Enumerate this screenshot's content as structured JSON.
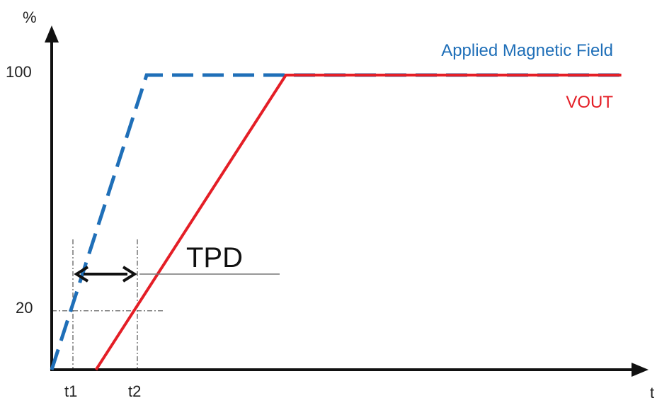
{
  "chart_data": {
    "type": "line",
    "y_axis_label": "%",
    "x_axis_label": "t",
    "y_ticks": [
      {
        "value": 100,
        "label": "100"
      },
      {
        "value": 20,
        "label": "20"
      }
    ],
    "x_ticks": [
      {
        "id": "t1",
        "label": "t1"
      },
      {
        "id": "t2",
        "label": "t2"
      }
    ],
    "series": [
      {
        "name": "Applied Magnetic Field",
        "color": "#1f6fb8",
        "style": "dashed",
        "description_points": [
          [
            0,
            0
          ],
          [
            1.5,
            100
          ],
          [
            9.0,
            100
          ]
        ]
      },
      {
        "name": "VOUT",
        "color": "#e41e26",
        "style": "solid",
        "description_points": [
          [
            0.7,
            0
          ],
          [
            3.7,
            100
          ],
          [
            9.0,
            100
          ]
        ]
      }
    ],
    "annotation": {
      "label": "TPD",
      "from_tick": "t1",
      "to_tick": "t2"
    },
    "colors": {
      "axis": "#111111",
      "guide": "#555555",
      "field": "#1f6fb8",
      "vout": "#e41e26"
    }
  }
}
